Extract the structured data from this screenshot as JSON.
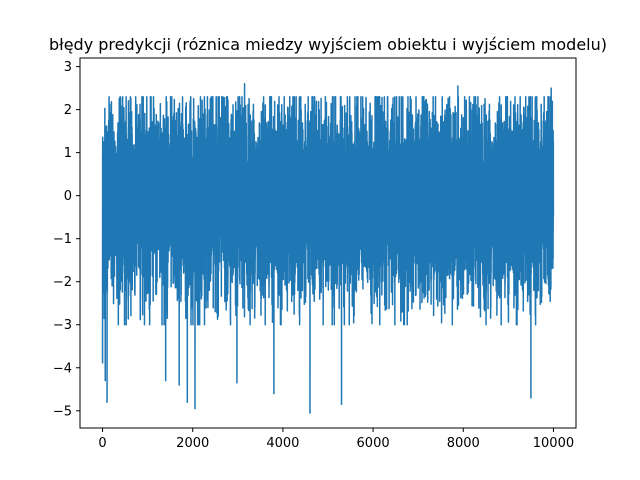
{
  "chart_data": {
    "type": "line",
    "title": "błędy predykcji (róznica miedzy wyjściem obiektu i wyjściem modelu)",
    "xlabel": "",
    "ylabel": "",
    "xlim": [
      -500,
      10500
    ],
    "ylim": [
      -5.4,
      3.2
    ],
    "x_ticks": [
      0,
      2000,
      4000,
      6000,
      8000,
      10000
    ],
    "y_ticks": [
      -5,
      -4,
      -3,
      -2,
      -1,
      0,
      1,
      2,
      3
    ],
    "grid": false,
    "legend": "none",
    "series": [
      {
        "color": "#1f77b4",
        "n_points": 10000,
        "x_start": 0,
        "x_end": 9999,
        "typical_range": [
          -3.0,
          2.3
        ],
        "max": 2.75,
        "min": -5.05,
        "notable_peaks": [
          {
            "x": 100,
            "y": 2.75
          },
          {
            "x": 3150,
            "y": 2.6
          },
          {
            "x": 7880,
            "y": 2.55
          },
          {
            "x": 9950,
            "y": 2.5
          }
        ],
        "notable_dips": [
          {
            "x": 0,
            "y": -3.9
          },
          {
            "x": 60,
            "y": -4.3
          },
          {
            "x": 100,
            "y": -4.8
          },
          {
            "x": 1400,
            "y": -4.3
          },
          {
            "x": 1700,
            "y": -4.4
          },
          {
            "x": 1880,
            "y": -4.8
          },
          {
            "x": 2050,
            "y": -4.95
          },
          {
            "x": 2980,
            "y": -4.35
          },
          {
            "x": 3800,
            "y": -4.6
          },
          {
            "x": 4600,
            "y": -5.05
          },
          {
            "x": 5300,
            "y": -4.85
          },
          {
            "x": 9500,
            "y": -4.7
          }
        ]
      }
    ]
  }
}
